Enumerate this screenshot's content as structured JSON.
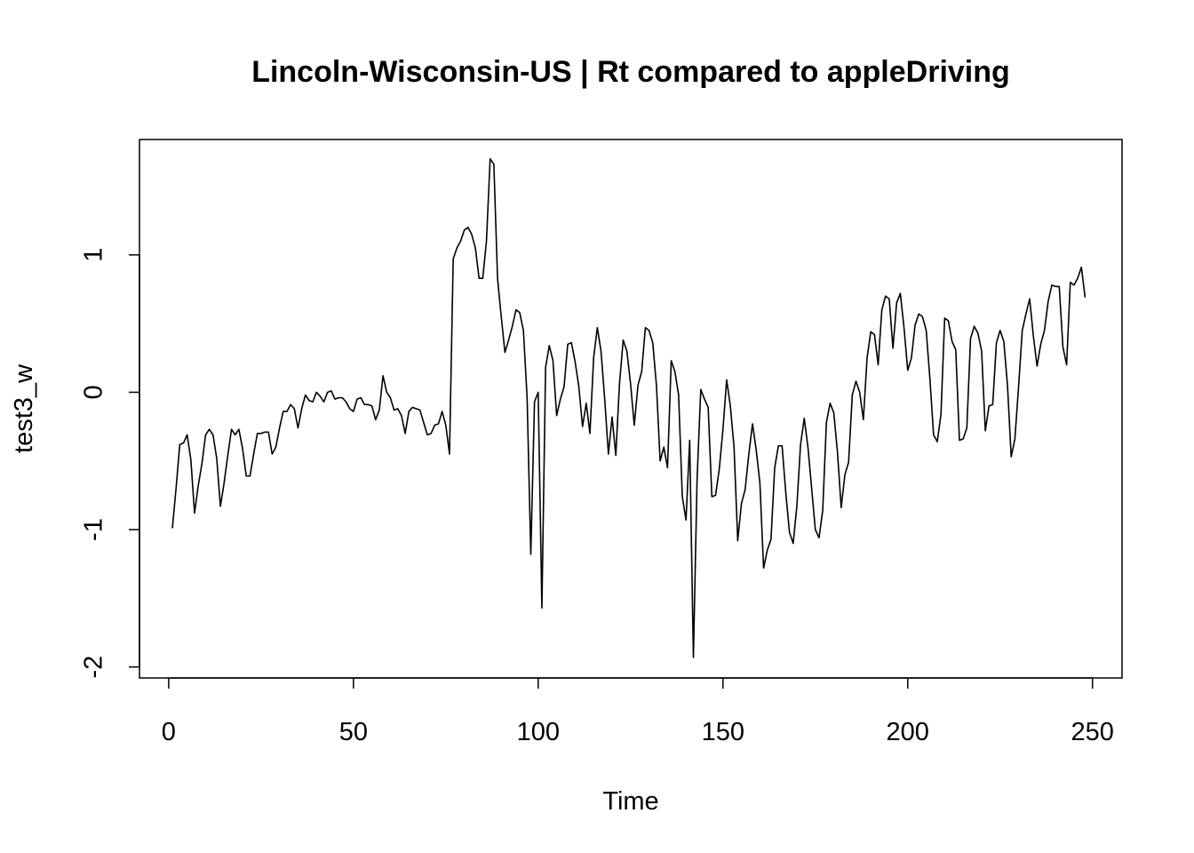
{
  "chart_data": {
    "type": "line",
    "title": "Lincoln-Wisconsin-US | Rt compared to appleDriving",
    "xlabel": "Time",
    "ylabel": "test3_w",
    "xlim": [
      -7.9,
      258
    ],
    "ylim": [
      -2.08,
      1.84
    ],
    "x_ticks": [
      0,
      50,
      100,
      150,
      200,
      250
    ],
    "y_ticks": [
      -2,
      -1,
      0,
      1
    ],
    "grid": false,
    "line_color": "#000000",
    "series": [
      {
        "x_start": 1,
        "values": [
          -0.99,
          -0.7,
          -0.38,
          -0.37,
          -0.31,
          -0.49,
          -0.88,
          -0.68,
          -0.52,
          -0.31,
          -0.27,
          -0.31,
          -0.48,
          -0.83,
          -0.66,
          -0.46,
          -0.27,
          -0.31,
          -0.27,
          -0.41,
          -0.61,
          -0.61,
          -0.45,
          -0.3,
          -0.3,
          -0.29,
          -0.29,
          -0.45,
          -0.4,
          -0.26,
          -0.14,
          -0.14,
          -0.09,
          -0.12,
          -0.26,
          -0.12,
          -0.02,
          -0.06,
          -0.07,
          0.0,
          -0.03,
          -0.07,
          0.0,
          0.01,
          -0.05,
          -0.04,
          -0.04,
          -0.07,
          -0.12,
          -0.14,
          -0.05,
          -0.04,
          -0.09,
          -0.09,
          -0.1,
          -0.2,
          -0.13,
          0.12,
          0.0,
          -0.04,
          -0.13,
          -0.12,
          -0.17,
          -0.3,
          -0.14,
          -0.11,
          -0.12,
          -0.13,
          -0.22,
          -0.31,
          -0.3,
          -0.24,
          -0.23,
          -0.14,
          -0.24,
          -0.45,
          0.97,
          1.05,
          1.1,
          1.18,
          1.2,
          1.15,
          1.05,
          0.83,
          0.83,
          1.1,
          1.7,
          1.66,
          0.83,
          0.55,
          0.29,
          0.38,
          0.48,
          0.6,
          0.58,
          0.45,
          -0.04,
          -1.18,
          -0.07,
          0.0,
          -1.57,
          0.18,
          0.34,
          0.23,
          -0.17,
          -0.05,
          0.04,
          0.35,
          0.36,
          0.22,
          0.04,
          -0.25,
          -0.08,
          -0.3,
          0.25,
          0.47,
          0.3,
          -0.05,
          -0.45,
          -0.18,
          -0.46,
          0.06,
          0.38,
          0.3,
          0.06,
          -0.24,
          0.05,
          0.15,
          0.47,
          0.45,
          0.36,
          0.05,
          -0.5,
          -0.4,
          -0.55,
          0.23,
          0.15,
          -0.02,
          -0.76,
          -0.93,
          -0.35,
          -1.93,
          -0.63,
          0.02,
          -0.05,
          -0.11,
          -0.76,
          -0.75,
          -0.56,
          -0.27,
          0.09,
          -0.1,
          -0.4,
          -1.08,
          -0.81,
          -0.71,
          -0.45,
          -0.23,
          -0.42,
          -0.66,
          -1.28,
          -1.15,
          -1.07,
          -0.55,
          -0.39,
          -0.39,
          -0.73,
          -1.02,
          -1.1,
          -0.83,
          -0.38,
          -0.19,
          -0.4,
          -0.7,
          -1.0,
          -1.06,
          -0.86,
          -0.22,
          -0.08,
          -0.15,
          -0.44,
          -0.84,
          -0.6,
          -0.51,
          -0.02,
          0.08,
          0.0,
          -0.2,
          0.25,
          0.44,
          0.42,
          0.2,
          0.6,
          0.7,
          0.68,
          0.32,
          0.65,
          0.72,
          0.47,
          0.16,
          0.25,
          0.49,
          0.57,
          0.55,
          0.45,
          0.1,
          -0.31,
          -0.36,
          -0.16,
          0.54,
          0.52,
          0.37,
          0.31,
          -0.35,
          -0.34,
          -0.26,
          0.39,
          0.48,
          0.43,
          0.3,
          -0.28,
          -0.1,
          -0.09,
          0.36,
          0.45,
          0.37,
          0.05,
          -0.47,
          -0.34,
          0.04,
          0.45,
          0.57,
          0.68,
          0.41,
          0.19,
          0.35,
          0.45,
          0.66,
          0.78,
          0.77,
          0.77,
          0.33,
          0.2,
          0.8,
          0.78,
          0.83,
          0.91,
          0.69
        ]
      }
    ]
  }
}
